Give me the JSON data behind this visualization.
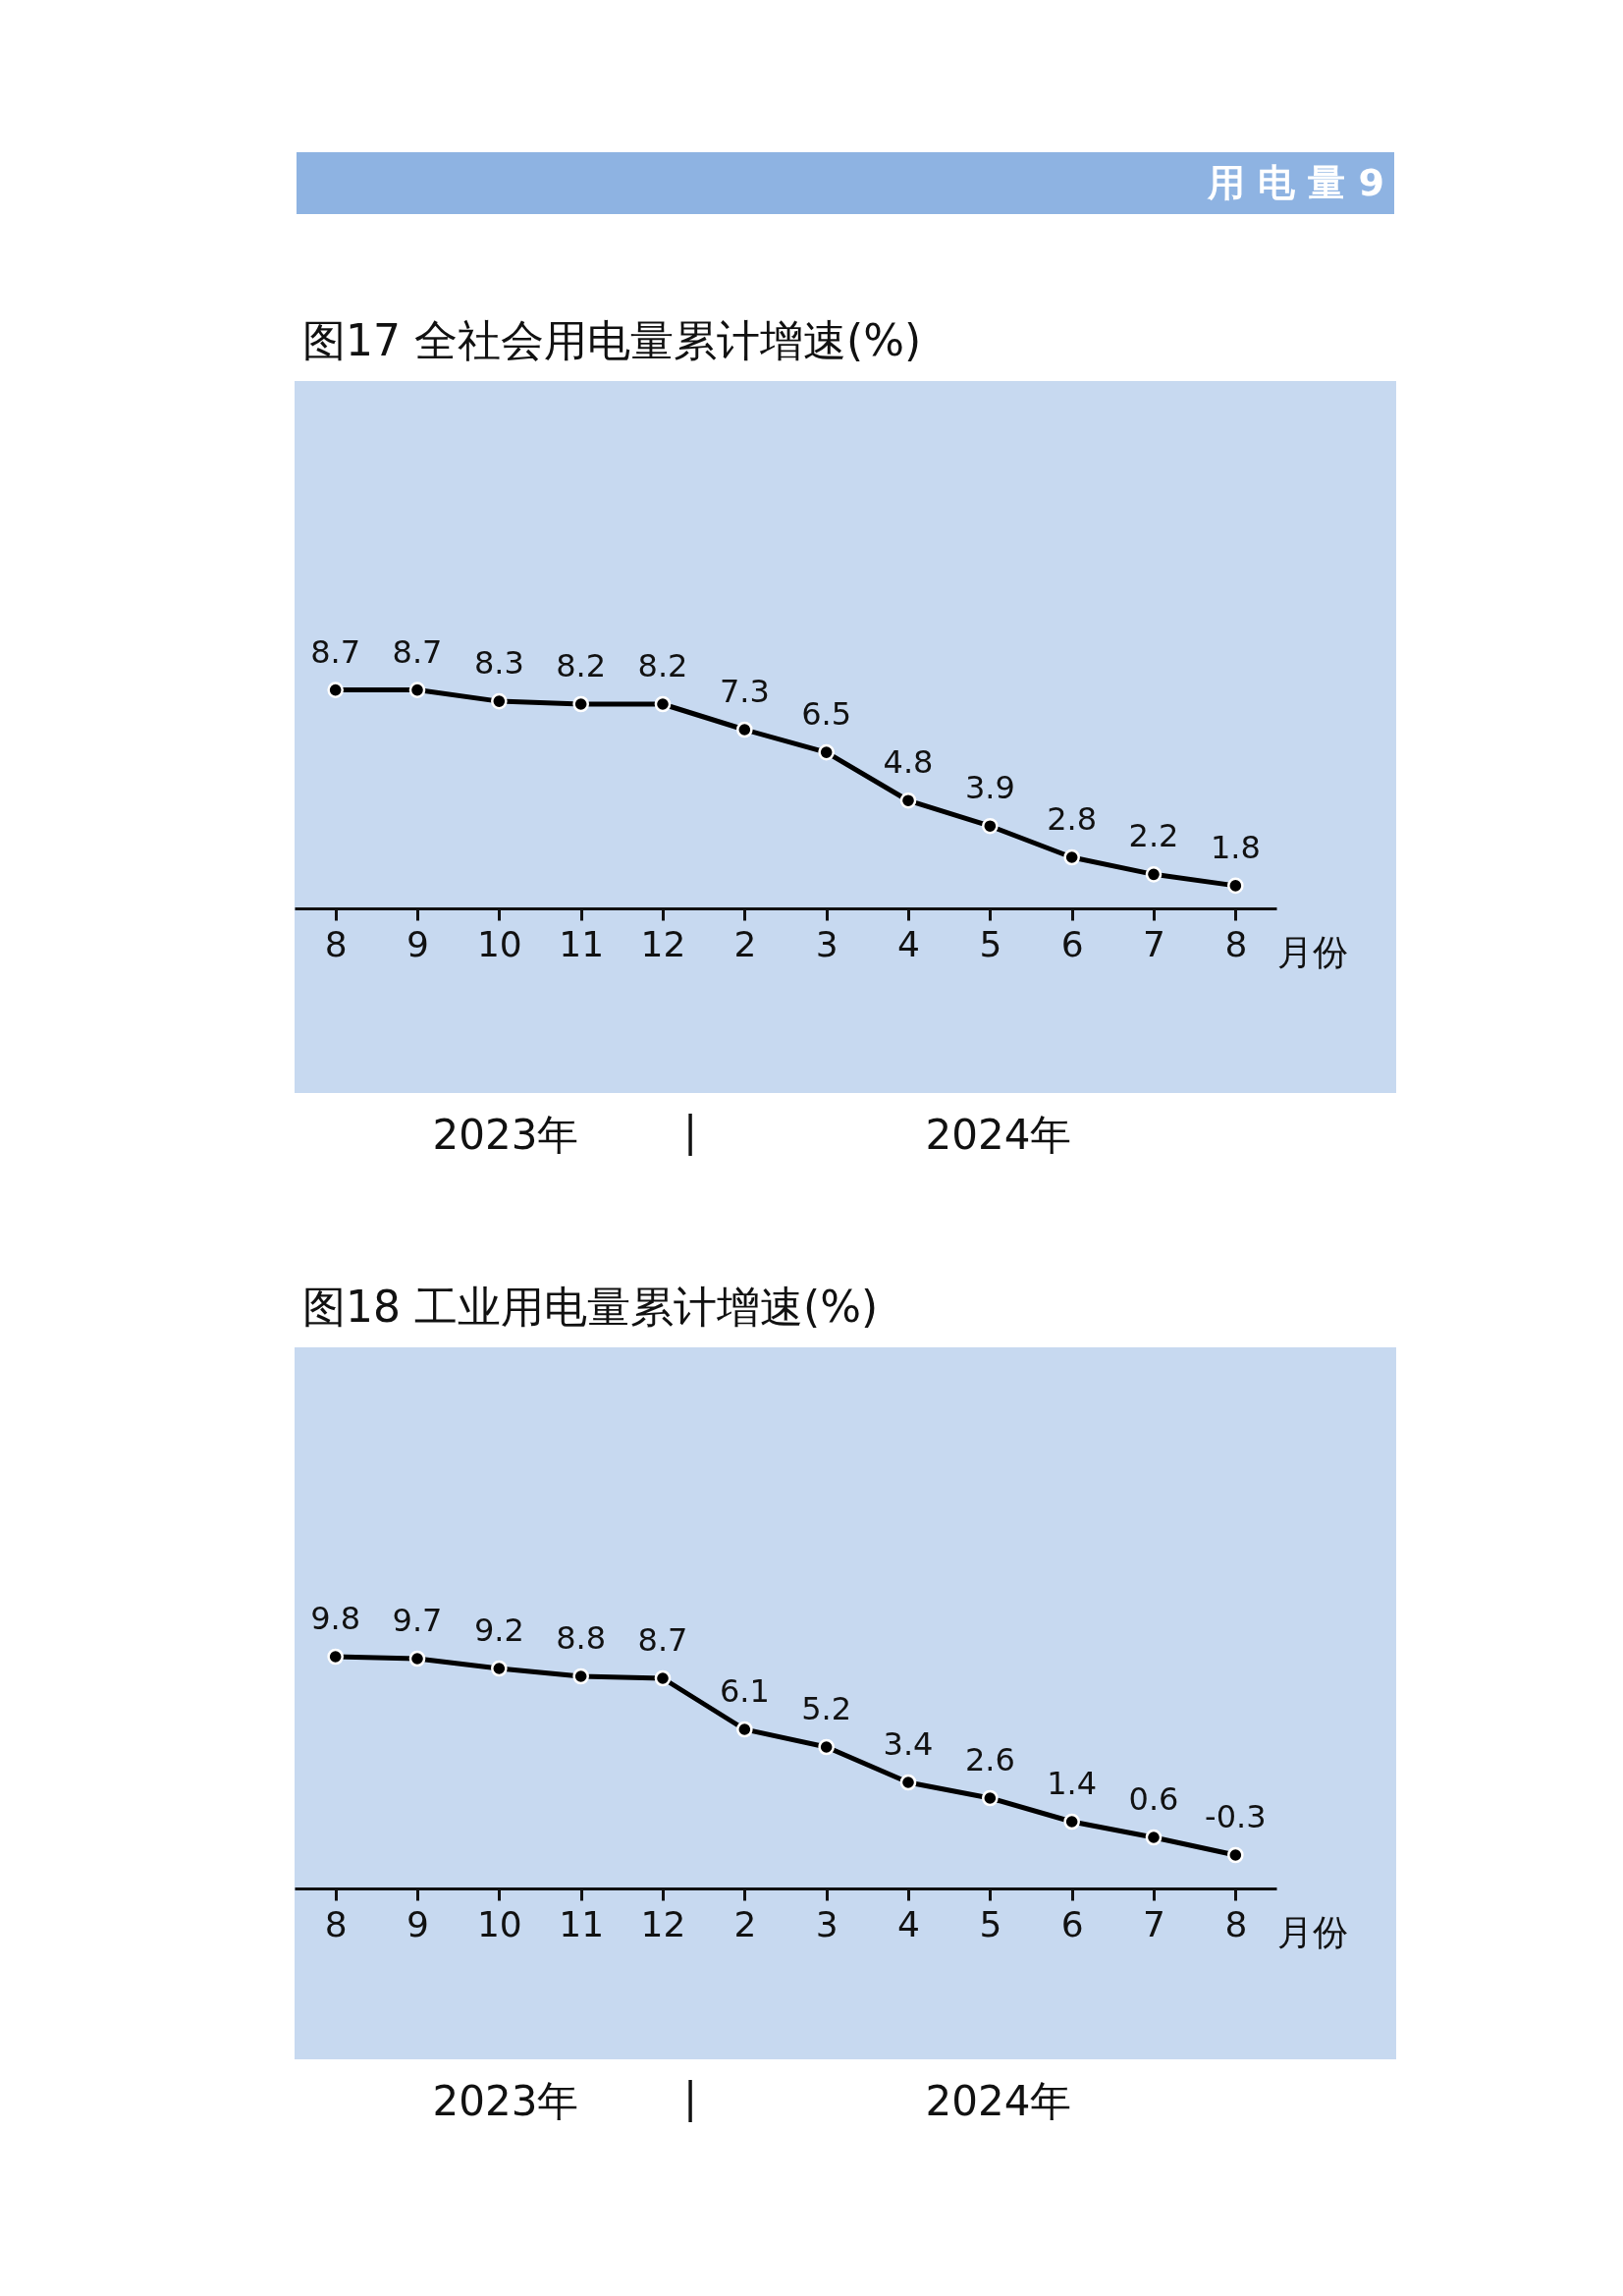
{
  "chart_data": [
    {
      "type": "line",
      "title": "图17  全社会用电量累计增速(%)",
      "xlabel": "月份",
      "categories": [
        "8",
        "9",
        "10",
        "11",
        "12",
        "2",
        "3",
        "4",
        "5",
        "6",
        "7",
        "8"
      ],
      "series": [
        {
          "color": "#000000",
          "values": [
            8.7,
            8.7,
            8.3,
            8.2,
            8.2,
            7.3,
            6.5,
            4.8,
            3.9,
            2.8,
            2.2,
            1.8
          ]
        }
      ],
      "data_labels": true,
      "marker": "circle",
      "line_style": "solid",
      "grid": false,
      "legend": false,
      "tick_labels": "x",
      "annotations": [
        "用 电 量 9",
        "2023年",
        "|",
        "2024年"
      ]
    },
    {
      "type": "line",
      "title": "图18  工业用电量累计增速(%)",
      "xlabel": "月份",
      "categories": [
        "8",
        "9",
        "10",
        "11",
        "12",
        "2",
        "3",
        "4",
        "5",
        "6",
        "7",
        "8"
      ],
      "series": [
        {
          "color": "#000000",
          "values": [
            9.8,
            9.7,
            9.2,
            8.8,
            8.7,
            6.1,
            5.2,
            3.4,
            2.6,
            1.4,
            0.6,
            -0.3
          ]
        }
      ],
      "data_labels": true,
      "marker": "circle",
      "line_style": "solid",
      "grid": false,
      "legend": false,
      "tick_labels": "x",
      "annotations": [
        "2023年",
        "|",
        "2024年"
      ]
    }
  ]
}
